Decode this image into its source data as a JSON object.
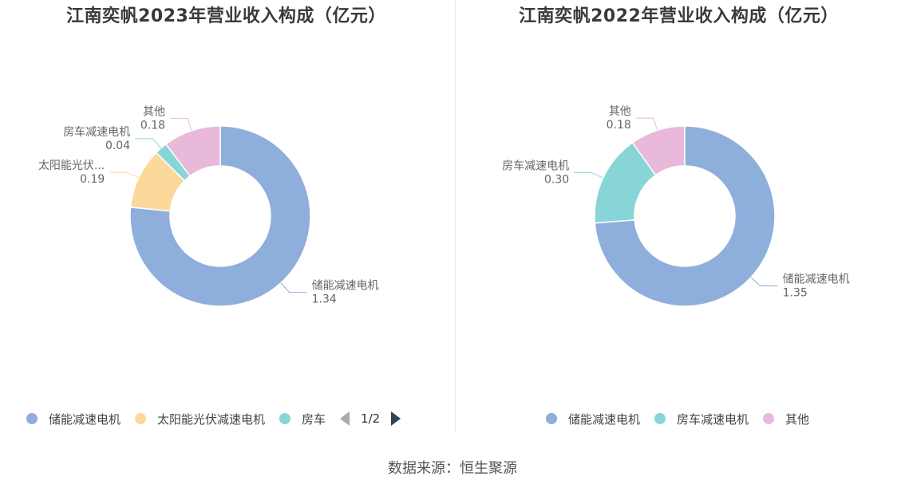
{
  "colors": {
    "blue": "#8eaedc",
    "yellow": "#fdd89b",
    "teal": "#88d5d8",
    "pink": "#e8b9da"
  },
  "charts": [
    {
      "title": "江南奕帆2023年营业收入构成（亿元）",
      "legend": [
        {
          "label": "储能减速电机",
          "color": "#8eaedc"
        },
        {
          "label": "太阳能光伏减速电机",
          "color": "#fdd89b"
        },
        {
          "label": "房车",
          "color": "#88d5d8"
        }
      ],
      "pager": "1/2"
    },
    {
      "title": "江南奕帆2022年营业收入构成（亿元）",
      "legend": [
        {
          "label": "储能减速电机",
          "color": "#8eaedc"
        },
        {
          "label": "房车减速电机",
          "color": "#88d5d8"
        },
        {
          "label": "其他",
          "color": "#e8b9da"
        }
      ]
    }
  ],
  "chart_data": [
    {
      "type": "pie",
      "title": "江南奕帆2023年营业收入构成（亿元）",
      "donut": true,
      "slices": [
        {
          "label": "储能减速电机",
          "value": 1.34,
          "value_text": "1.34",
          "display_label": "储能减速电机",
          "color": "#8eaedc"
        },
        {
          "label": "太阳能光伏减速电机",
          "value": 0.19,
          "value_text": "0.19",
          "display_label": "太阳能光伏...",
          "color": "#fdd89b"
        },
        {
          "label": "房车减速电机",
          "value": 0.04,
          "value_text": "0.04",
          "display_label": "房车减速电机",
          "color": "#88d5d8"
        },
        {
          "label": "其他",
          "value": 0.18,
          "value_text": "0.18",
          "display_label": "其他",
          "color": "#e8b9da"
        }
      ]
    },
    {
      "type": "pie",
      "title": "江南奕帆2022年营业收入构成（亿元）",
      "donut": true,
      "slices": [
        {
          "label": "储能减速电机",
          "value": 1.35,
          "value_text": "1.35",
          "display_label": "储能减速电机",
          "color": "#8eaedc"
        },
        {
          "label": "房车减速电机",
          "value": 0.3,
          "value_text": "0.30",
          "display_label": "房车减速电机",
          "color": "#88d5d8"
        },
        {
          "label": "其他",
          "value": 0.18,
          "value_text": "0.18",
          "display_label": "其他",
          "color": "#e8b9da"
        }
      ]
    }
  ],
  "source": "数据来源：恒生聚源"
}
